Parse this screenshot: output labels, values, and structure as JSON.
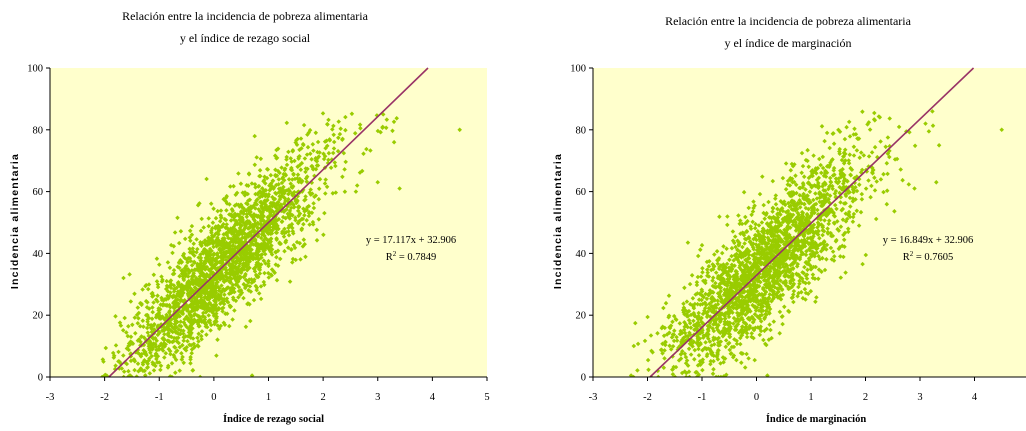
{
  "colors": {
    "plot_bg": "#ffffcc",
    "points": "#99cc00",
    "trendline": "#993366",
    "axis": "#000000"
  },
  "chart_data": [
    {
      "type": "scatter",
      "title": [
        "Relación entre la incidencia de pobreza alimentaria",
        "y el índice de rezago social"
      ],
      "xlabel": "Índice de rezago social",
      "ylabel": "Incidencia alimentaria",
      "xlim": [
        -3,
        5
      ],
      "ylim": [
        0,
        100
      ],
      "xticks": [
        -3,
        -2,
        -1,
        0,
        1,
        2,
        3,
        4,
        5
      ],
      "yticks": [
        0,
        20,
        40,
        60,
        80,
        100
      ],
      "grid": false,
      "trendline": {
        "slope": 17.117,
        "intercept": 32.906,
        "r2": 0.7849
      },
      "equation_label": "y = 17.117x + 32.906",
      "r2_label": {
        "prefix": "R",
        "sup": "2",
        "rest": " = 0.7849"
      },
      "point_cloud": {
        "n": 2400,
        "x_range": [
          -2.05,
          3.4
        ],
        "residual_sd": 9.2,
        "seed": 11
      },
      "series": [
        {
          "points": [
            [
              4.5,
              80
            ],
            [
              3.4,
              61
            ],
            [
              3.3,
              76
            ],
            [
              -2.0,
              0.5
            ],
            [
              -0.8,
              0.2
            ],
            [
              0.7,
              0.5
            ],
            [
              3.0,
              63
            ],
            [
              2.6,
              60
            ],
            [
              3.1,
              85
            ]
          ]
        }
      ]
    },
    {
      "type": "scatter",
      "title": [
        "Relación entre la incidencia de pobreza alimentaria",
        "y el índice de marginación"
      ],
      "xlabel": "Índice de marginación",
      "ylabel": "Incidencia alimentaria",
      "xlim": [
        -3,
        5
      ],
      "ylim": [
        0,
        100
      ],
      "xticks": [
        -3,
        -2,
        -1,
        0,
        1,
        2,
        3,
        4,
        5
      ],
      "yticks": [
        0,
        20,
        40,
        60,
        80,
        100
      ],
      "grid": false,
      "trendline": {
        "slope": 16.849,
        "intercept": 32.906,
        "r2": 0.7605
      },
      "equation_label": "y = 16.849x + 32.906",
      "r2_label": {
        "prefix": "R",
        "sup": "2",
        "rest": " = 0.7605"
      },
      "point_cloud": {
        "n": 2400,
        "x_range": [
          -2.35,
          3.35
        ],
        "residual_sd": 9.8,
        "seed": 23
      },
      "series": [
        {
          "points": [
            [
              4.5,
              80
            ],
            [
              3.3,
              63
            ],
            [
              2.9,
              61
            ],
            [
              -2.3,
              0.5
            ],
            [
              -0.6,
              0.2
            ],
            [
              0.2,
              0.5
            ],
            [
              3.1,
              82
            ],
            [
              3.35,
              75
            ]
          ]
        }
      ]
    }
  ]
}
